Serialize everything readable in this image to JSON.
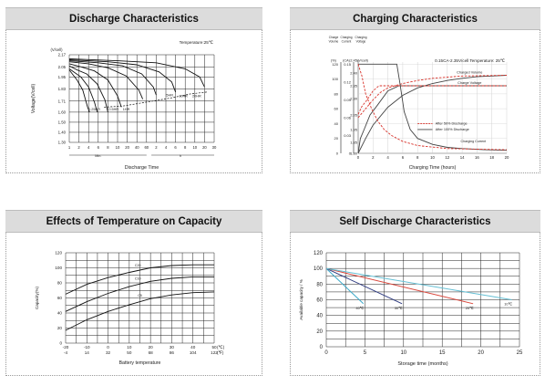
{
  "chart_data": [
    {
      "id": "discharge",
      "panel_title": "Discharge Characteristics",
      "type": "line",
      "annotation": "Temperature:25℃",
      "y_unit_label": "(V/cell)",
      "ylabel": "Voltage(V/cell)",
      "yticks": [
        "2.17",
        "2.05",
        "1.95",
        "1.83",
        "1.71",
        "1.60",
        "1.50",
        "1.40",
        "1.30"
      ],
      "xticks": [
        "1",
        "2",
        "4",
        "6",
        "8",
        "10",
        "20",
        "40",
        "60",
        "2",
        "4",
        "6",
        "8",
        "10",
        "20",
        "30"
      ],
      "unit_min": "Min.",
      "unit_h": "h",
      "xlabel": "Discharge Time",
      "series": [
        {
          "name": "3CA",
          "x": [
            0,
            0.4,
            0.8,
            1.4,
            1.9,
            2.1
          ],
          "y": [
            2.02,
            1.97,
            1.92,
            1.82,
            1.65,
            1.6
          ]
        },
        {
          "name": "2CA",
          "x": [
            0,
            0.6,
            1.2,
            2.0,
            2.6,
            2.9
          ],
          "y": [
            2.03,
            1.99,
            1.95,
            1.85,
            1.7,
            1.6
          ]
        },
        {
          "name": "1CA",
          "x": [
            0,
            0.8,
            1.8,
            2.9,
            3.7,
            4.0
          ],
          "y": [
            2.06,
            2.02,
            1.98,
            1.88,
            1.72,
            1.6
          ]
        },
        {
          "name": "0.6CA",
          "x": [
            0,
            1.2,
            2.6,
            4.0,
            5.0,
            5.4
          ],
          "y": [
            2.08,
            2.05,
            2.01,
            1.92,
            1.76,
            1.65
          ]
        },
        {
          "name": "0.25CA",
          "x": [
            0,
            2,
            4,
            5.9,
            7.2,
            7.6
          ],
          "y": [
            2.1,
            2.08,
            2.04,
            1.96,
            1.82,
            1.73
          ]
        },
        {
          "name": "0.17CA",
          "x": [
            0,
            3,
            5.5,
            7.5,
            8.7,
            9.0
          ],
          "y": [
            2.11,
            2.09,
            2.06,
            1.98,
            1.85,
            1.77
          ]
        },
        {
          "name": "0.1CA",
          "x": [
            0,
            4,
            7,
            9.3,
            10.6,
            11.0
          ],
          "y": [
            2.12,
            2.1,
            2.07,
            2.0,
            1.9,
            1.8
          ]
        },
        {
          "name": "0.05CA",
          "x": [
            0,
            5,
            9,
            12,
            13.5,
            14.0
          ],
          "y": [
            2.13,
            2.11,
            2.09,
            2.03,
            1.95,
            1.85
          ]
        }
      ],
      "cutoff": {
        "x": [
          3.6,
          5.5,
          8.0,
          10.5,
          12.5,
          14.3
        ],
        "y": [
          1.65,
          1.66,
          1.7,
          1.74,
          1.78,
          1.8
        ]
      },
      "labels": [
        "0.25HR",
        "0.5HR",
        "1HR",
        "5HR",
        "10HR",
        "20HR"
      ],
      "xlim": [
        0,
        15
      ],
      "ylim": [
        1.3,
        2.17
      ]
    },
    {
      "id": "charging",
      "panel_title": "Charging Characteristics",
      "type": "line",
      "annotation": "0.15CA-2.35V/cell   Temperature: 25℃",
      "axis_heads": {
        "volume": "Charge\nVolume",
        "current": "Charging\nCurrent",
        "voltage": "Charging\nVoltage"
      },
      "unit_heads": [
        "(%)",
        "(CA)",
        "(V/cell)"
      ],
      "volume_ticks": [
        "140",
        "120",
        "100",
        "80",
        "60",
        "40",
        "20",
        "0"
      ],
      "current_ticks": [
        "0.15",
        "0.12",
        "0.09",
        "0.06",
        "0.03",
        "0"
      ],
      "voltage_ticks": [
        "2.45",
        "2.40",
        "2.35",
        "2.30",
        "2.05",
        "1.95",
        "1.85",
        "1.80"
      ],
      "xticks": [
        "0",
        "2",
        "4",
        "6",
        "8",
        "10",
        "12",
        "14",
        "16",
        "18",
        "20"
      ],
      "xlabel": "Charging Time (hours)",
      "legend": [
        "After 50% Discharge",
        "After 100% Discharge"
      ],
      "curve_labels": {
        "volume": "Charged Volume",
        "voltage": "Charge Voltage",
        "current": "Charging Current"
      },
      "xlim": [
        0,
        20
      ],
      "series": [
        {
          "name": "volume_100",
          "x": [
            0,
            1,
            2,
            4,
            6,
            8,
            10,
            12,
            14,
            16,
            18,
            20
          ],
          "y": [
            0,
            20,
            38,
            62,
            78,
            88,
            94,
            98,
            101,
            103,
            104,
            105
          ]
        },
        {
          "name": "volume_50",
          "x": [
            0,
            1,
            2,
            3,
            4,
            6,
            8,
            10,
            14,
            20
          ],
          "y": [
            48,
            60,
            72,
            82,
            88,
            94,
            98,
            101,
            104,
            105
          ]
        },
        {
          "name": "voltage_100",
          "x": [
            0,
            0.3,
            0.8,
            1.6,
            2.6,
            4.0,
            5.5,
            6.0,
            20
          ],
          "y": [
            1.8,
            1.88,
            1.95,
            2.05,
            2.2,
            2.33,
            2.35,
            2.35,
            2.35
          ]
        },
        {
          "name": "voltage_50",
          "x": [
            0,
            0.5,
            1.2,
            2.0,
            2.8,
            3.5,
            20
          ],
          "y": [
            2.06,
            2.18,
            2.28,
            2.33,
            2.35,
            2.35,
            2.35
          ]
        },
        {
          "name": "current_100",
          "x": [
            0,
            5.2,
            5.6,
            6.2,
            7,
            8,
            10,
            12,
            14,
            17,
            20
          ],
          "y": [
            0.15,
            0.15,
            0.12,
            0.07,
            0.04,
            0.025,
            0.015,
            0.01,
            0.008,
            0.006,
            0.005
          ]
        },
        {
          "name": "current_50",
          "x": [
            0,
            0.5,
            1,
            1.8,
            2.6,
            3.5,
            4.5,
            6,
            8,
            12,
            20
          ],
          "y": [
            0.15,
            0.13,
            0.1,
            0.075,
            0.055,
            0.04,
            0.03,
            0.02,
            0.013,
            0.008,
            0.006
          ]
        }
      ]
    },
    {
      "id": "temperature",
      "panel_title": "Effects of Temperature on Capacity",
      "type": "line",
      "ylabel": "Capacity(%)",
      "yticks": [
        "0",
        "20",
        "40",
        "60",
        "80",
        "100",
        "120"
      ],
      "xticks_c": [
        "-20",
        "-10",
        "0",
        "10",
        "20",
        "30",
        "40",
        "50"
      ],
      "xticks_f": [
        "-4",
        "14",
        "32",
        "50",
        "68",
        "86",
        "104",
        "122"
      ],
      "x_unit": "(℃)",
      "x_unit_f": "(℉)",
      "xlabel": "Battery temperature",
      "xlim": [
        -20,
        50
      ],
      "ylim": [
        0,
        120
      ],
      "series": [
        {
          "name": "C20",
          "x": [
            -20,
            -10,
            0,
            10,
            20,
            30,
            40,
            50
          ],
          "y": [
            65,
            78,
            87,
            94,
            100,
            103,
            104,
            104
          ]
        },
        {
          "name": "C10",
          "x": [
            -20,
            -10,
            0,
            10,
            20,
            30,
            40,
            50
          ],
          "y": [
            42,
            55,
            66,
            75,
            82,
            86,
            88,
            88
          ]
        },
        {
          "name": "C5",
          "x": [
            -20,
            -10,
            0,
            10,
            20,
            30,
            40,
            50
          ],
          "y": [
            17,
            31,
            42,
            51,
            59,
            64,
            67,
            68
          ]
        }
      ],
      "labels": [
        "C20",
        "C10",
        "C5"
      ]
    },
    {
      "id": "selfdischarge",
      "panel_title": "Self Discharge Characteristics",
      "type": "line",
      "ylabel": "Available capacity / %",
      "yticks": [
        "0",
        "20",
        "40",
        "60",
        "80",
        "100",
        "120"
      ],
      "xticks": [
        "0",
        "5",
        "10",
        "15",
        "20",
        "25"
      ],
      "xlabel": "Storage time (months)",
      "xlim": [
        0,
        25
      ],
      "ylim": [
        0,
        120
      ],
      "series": [
        {
          "name": "40℃",
          "x": [
            0,
            4.8
          ],
          "y": [
            100,
            55
          ],
          "color": "#3ba9c9"
        },
        {
          "name": "30℃",
          "x": [
            0,
            9.8
          ],
          "y": [
            100,
            55
          ],
          "color": "#2f3b80"
        },
        {
          "name": "20℃",
          "x": [
            0,
            19
          ],
          "y": [
            100,
            55
          ],
          "color": "#d9473c"
        },
        {
          "name": "10℃",
          "x": [
            0,
            24
          ],
          "y": [
            100,
            60
          ],
          "color": "#64bfd4"
        }
      ]
    }
  ]
}
